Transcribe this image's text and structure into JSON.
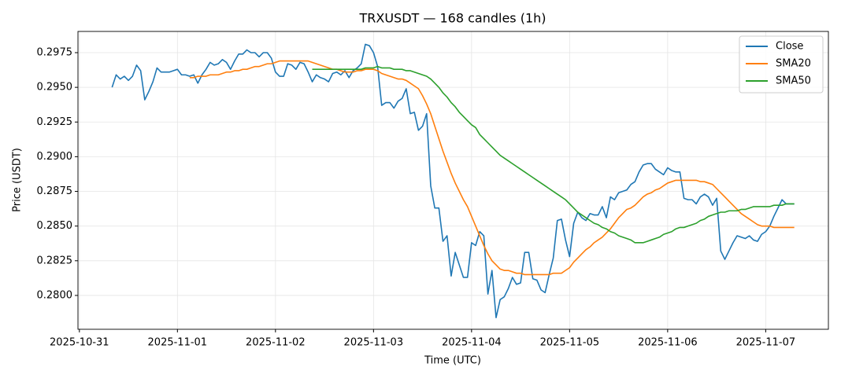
{
  "chart_data": {
    "type": "line",
    "title": "TRXUSDT — 168 candles (1h)",
    "xlabel": "Time (UTC)",
    "ylabel": "Price (USDT)",
    "grid": true,
    "legend": "upper right",
    "xlim": [
      "2025-10-30 23:39",
      "2025-11-07 15:21"
    ],
    "xticks": [
      "2025-10-31",
      "2025-11-01",
      "2025-11-02",
      "2025-11-03",
      "2025-11-04",
      "2025-11-05",
      "2025-11-06",
      "2025-11-07"
    ],
    "ylim": [
      0.27756,
      0.29903
    ],
    "yticks": [
      {
        "value": 0.28,
        "label": "0.2800"
      },
      0.2825,
      {
        "value": 0.285,
        "label": "0.2850"
      },
      0.2875,
      {
        "value": 0.29,
        "label": "0.2900"
      },
      0.2925,
      {
        "value": 0.295,
        "label": "0.2950"
      },
      0.2975
    ],
    "x": [
      "2025-10-31 08:00",
      "2025-10-31 09:00",
      "2025-10-31 10:00",
      "2025-10-31 11:00",
      "2025-10-31 12:00",
      "2025-10-31 13:00",
      "2025-10-31 14:00",
      "2025-10-31 15:00",
      "2025-10-31 16:00",
      "2025-10-31 17:00",
      "2025-10-31 18:00",
      "2025-10-31 19:00",
      "2025-10-31 20:00",
      "2025-10-31 21:00",
      "2025-10-31 22:00",
      "2025-10-31 23:00",
      "2025-11-01 00:00",
      "2025-11-01 01:00",
      "2025-11-01 02:00",
      "2025-11-01 03:00",
      "2025-11-01 04:00",
      "2025-11-01 05:00",
      "2025-11-01 06:00",
      "2025-11-01 07:00",
      "2025-11-01 08:00",
      "2025-11-01 09:00",
      "2025-11-01 10:00",
      "2025-11-01 11:00",
      "2025-11-01 12:00",
      "2025-11-01 13:00",
      "2025-11-01 14:00",
      "2025-11-01 15:00",
      "2025-11-01 16:00",
      "2025-11-01 17:00",
      "2025-11-01 18:00",
      "2025-11-01 19:00",
      "2025-11-01 20:00",
      "2025-11-01 21:00",
      "2025-11-01 22:00",
      "2025-11-01 23:00",
      "2025-11-02 00:00",
      "2025-11-02 01:00",
      "2025-11-02 02:00",
      "2025-11-02 03:00",
      "2025-11-02 04:00",
      "2025-11-02 05:00",
      "2025-11-02 06:00",
      "2025-11-02 07:00",
      "2025-11-02 08:00",
      "2025-11-02 09:00",
      "2025-11-02 10:00",
      "2025-11-02 11:00",
      "2025-11-02 12:00",
      "2025-11-02 13:00",
      "2025-11-02 14:00",
      "2025-11-02 15:00",
      "2025-11-02 16:00",
      "2025-11-02 17:00",
      "2025-11-02 18:00",
      "2025-11-02 19:00",
      "2025-11-02 20:00",
      "2025-11-02 21:00",
      "2025-11-02 22:00",
      "2025-11-02 23:00",
      "2025-11-03 00:00",
      "2025-11-03 01:00",
      "2025-11-03 02:00",
      "2025-11-03 03:00",
      "2025-11-03 04:00",
      "2025-11-03 05:00",
      "2025-11-03 06:00",
      "2025-11-03 07:00",
      "2025-11-03 08:00",
      "2025-11-03 09:00",
      "2025-11-03 10:00",
      "2025-11-03 11:00",
      "2025-11-03 12:00",
      "2025-11-03 13:00",
      "2025-11-03 14:00",
      "2025-11-03 15:00",
      "2025-11-03 16:00",
      "2025-11-03 17:00",
      "2025-11-03 18:00",
      "2025-11-03 19:00",
      "2025-11-03 20:00",
      "2025-11-03 21:00",
      "2025-11-03 22:00",
      "2025-11-03 23:00",
      "2025-11-04 00:00",
      "2025-11-04 01:00",
      "2025-11-04 02:00",
      "2025-11-04 03:00",
      "2025-11-04 04:00",
      "2025-11-04 05:00",
      "2025-11-04 06:00",
      "2025-11-04 07:00",
      "2025-11-04 08:00",
      "2025-11-04 09:00",
      "2025-11-04 10:00",
      "2025-11-04 11:00",
      "2025-11-04 12:00",
      "2025-11-04 13:00",
      "2025-11-04 14:00",
      "2025-11-04 15:00",
      "2025-11-04 16:00",
      "2025-11-04 17:00",
      "2025-11-04 18:00",
      "2025-11-04 19:00",
      "2025-11-04 20:00",
      "2025-11-04 21:00",
      "2025-11-04 22:00",
      "2025-11-04 23:00",
      "2025-11-05 00:00",
      "2025-11-05 01:00",
      "2025-11-05 02:00",
      "2025-11-05 03:00",
      "2025-11-05 04:00",
      "2025-11-05 05:00",
      "2025-11-05 06:00",
      "2025-11-05 07:00",
      "2025-11-05 08:00",
      "2025-11-05 09:00",
      "2025-11-05 10:00",
      "2025-11-05 11:00",
      "2025-11-05 12:00",
      "2025-11-05 13:00",
      "2025-11-05 14:00",
      "2025-11-05 15:00",
      "2025-11-05 16:00",
      "2025-11-05 17:00",
      "2025-11-05 18:00",
      "2025-11-05 19:00",
      "2025-11-05 20:00",
      "2025-11-05 21:00",
      "2025-11-05 22:00",
      "2025-11-05 23:00",
      "2025-11-06 00:00",
      "2025-11-06 01:00",
      "2025-11-06 02:00",
      "2025-11-06 03:00",
      "2025-11-06 04:00",
      "2025-11-06 05:00",
      "2025-11-06 06:00",
      "2025-11-06 07:00",
      "2025-11-06 08:00",
      "2025-11-06 09:00",
      "2025-11-06 10:00",
      "2025-11-06 11:00",
      "2025-11-06 12:00",
      "2025-11-06 13:00",
      "2025-11-06 14:00",
      "2025-11-06 15:00",
      "2025-11-06 16:00",
      "2025-11-06 17:00",
      "2025-11-06 18:00",
      "2025-11-06 19:00",
      "2025-11-06 20:00",
      "2025-11-06 21:00",
      "2025-11-06 22:00",
      "2025-11-06 23:00",
      "2025-11-07 00:00",
      "2025-11-07 01:00",
      "2025-11-07 02:00",
      "2025-11-07 03:00",
      "2025-11-07 04:00",
      "2025-11-07 05:00",
      "2025-11-07 06:00",
      "2025-11-07 07:00"
    ],
    "series": [
      {
        "name": "Close",
        "color": "#1f77b4",
        "values": [
          0.295,
          0.2959,
          0.2956,
          0.2958,
          0.2955,
          0.2958,
          0.2966,
          0.2962,
          0.2941,
          0.2947,
          0.2954,
          0.2964,
          0.2961,
          0.2961,
          0.2961,
          0.2962,
          0.2963,
          0.2959,
          0.2959,
          0.2958,
          0.2959,
          0.2953,
          0.2959,
          0.2963,
          0.2968,
          0.2966,
          0.2967,
          0.297,
          0.2968,
          0.2963,
          0.2969,
          0.2974,
          0.2974,
          0.2977,
          0.2975,
          0.2975,
          0.2972,
          0.2975,
          0.2975,
          0.2971,
          0.2961,
          0.2958,
          0.2958,
          0.2967,
          0.2966,
          0.2963,
          0.2968,
          0.2967,
          0.2961,
          0.2954,
          0.2959,
          0.2957,
          0.2956,
          0.2954,
          0.296,
          0.2961,
          0.2959,
          0.2962,
          0.2957,
          0.2962,
          0.2964,
          0.2967,
          0.2981,
          0.298,
          0.2975,
          0.2965,
          0.2937,
          0.2939,
          0.2939,
          0.2935,
          0.294,
          0.2942,
          0.2949,
          0.2931,
          0.2932,
          0.2919,
          0.2922,
          0.2931,
          0.2879,
          0.2863,
          0.2863,
          0.2839,
          0.2843,
          0.2814,
          0.2831,
          0.2822,
          0.2813,
          0.2813,
          0.2838,
          0.2836,
          0.2846,
          0.2843,
          0.2801,
          0.2818,
          0.2784,
          0.2797,
          0.2799,
          0.2805,
          0.2813,
          0.2808,
          0.2809,
          0.2831,
          0.2831,
          0.2812,
          0.2811,
          0.2804,
          0.2802,
          0.2815,
          0.2827,
          0.2854,
          0.2855,
          0.284,
          0.2828,
          0.2852,
          0.286,
          0.2856,
          0.2854,
          0.2859,
          0.2858,
          0.2858,
          0.2864,
          0.2856,
          0.2871,
          0.2869,
          0.2874,
          0.2875,
          0.2876,
          0.288,
          0.2882,
          0.2889,
          0.2894,
          0.2895,
          0.2895,
          0.2891,
          0.2889,
          0.2887,
          0.2892,
          0.289,
          0.2889,
          0.2889,
          0.287,
          0.2869,
          0.2869,
          0.2866,
          0.2871,
          0.2873,
          0.2871,
          0.2865,
          0.287,
          0.2832,
          0.2826,
          0.2832,
          0.2838,
          0.2843,
          0.2842,
          0.2841,
          0.2843,
          0.284,
          0.2839,
          0.2844,
          0.2846,
          0.285,
          0.2857,
          0.2863,
          0.2869,
          0.2866,
          0.2866,
          0.2866
        ]
      },
      {
        "name": "SMA20",
        "color": "#ff7f0e",
        "values": [
          null,
          null,
          null,
          null,
          null,
          null,
          null,
          null,
          null,
          null,
          null,
          null,
          null,
          null,
          null,
          null,
          null,
          null,
          null,
          0.2957,
          0.2957,
          0.2958,
          0.2958,
          0.2958,
          0.2959,
          0.2959,
          0.2959,
          0.296,
          0.2961,
          0.2961,
          0.2962,
          0.2962,
          0.2963,
          0.2963,
          0.2964,
          0.2965,
          0.2965,
          0.2966,
          0.2967,
          0.2967,
          0.2968,
          0.2969,
          0.2969,
          0.2969,
          0.2969,
          0.2969,
          0.2969,
          0.2969,
          0.2969,
          0.2968,
          0.2967,
          0.2966,
          0.2965,
          0.2964,
          0.2963,
          0.2963,
          0.2962,
          0.2961,
          0.2961,
          0.2961,
          0.2962,
          0.2962,
          0.2963,
          0.2963,
          0.2963,
          0.2962,
          0.296,
          0.2959,
          0.2958,
          0.2957,
          0.2956,
          0.2956,
          0.2955,
          0.2953,
          0.2951,
          0.2949,
          0.2944,
          0.2938,
          0.2931,
          0.2922,
          0.2913,
          0.2904,
          0.2896,
          0.2888,
          0.2881,
          0.2875,
          0.2869,
          0.2864,
          0.2857,
          0.285,
          0.2843,
          0.2836,
          0.283,
          0.2825,
          0.2822,
          0.2819,
          0.2818,
          0.2818,
          0.2817,
          0.2816,
          0.2816,
          0.2815,
          0.2815,
          0.2815,
          0.2815,
          0.2815,
          0.2815,
          0.2815,
          0.2816,
          0.2816,
          0.2816,
          0.2818,
          0.282,
          0.2824,
          0.2827,
          0.283,
          0.2833,
          0.2835,
          0.2838,
          0.284,
          0.2842,
          0.2845,
          0.2848,
          0.2852,
          0.2856,
          0.2859,
          0.2862,
          0.2863,
          0.2865,
          0.2868,
          0.2871,
          0.2873,
          0.2874,
          0.2876,
          0.2877,
          0.2879,
          0.2881,
          0.2882,
          0.2883,
          0.2883,
          0.2883,
          0.2883,
          0.2883,
          0.2883,
          0.2882,
          0.2882,
          0.2881,
          0.288,
          0.2877,
          0.2874,
          0.2871,
          0.2868,
          0.2865,
          0.2862,
          0.2859,
          0.2857,
          0.2855,
          0.2853,
          0.2851,
          0.285,
          0.285,
          0.285,
          0.2849,
          0.2849,
          0.2849,
          0.2849,
          0.2849,
          0.2849
        ]
      },
      {
        "name": "SMA50",
        "color": "#2ca02c",
        "values": [
          null,
          null,
          null,
          null,
          null,
          null,
          null,
          null,
          null,
          null,
          null,
          null,
          null,
          null,
          null,
          null,
          null,
          null,
          null,
          null,
          null,
          null,
          null,
          null,
          null,
          null,
          null,
          null,
          null,
          null,
          null,
          null,
          null,
          null,
          null,
          null,
          null,
          null,
          null,
          null,
          null,
          null,
          null,
          null,
          null,
          null,
          null,
          null,
          null,
          0.2963,
          0.2963,
          0.2963,
          0.2963,
          0.2963,
          0.2963,
          0.2963,
          0.2963,
          0.2963,
          0.2963,
          0.2963,
          0.2963,
          0.2963,
          0.2964,
          0.2964,
          0.2964,
          0.2965,
          0.2964,
          0.2964,
          0.2964,
          0.2963,
          0.2963,
          0.2963,
          0.2962,
          0.2962,
          0.2961,
          0.296,
          0.2959,
          0.2958,
          0.2956,
          0.2953,
          0.295,
          0.2946,
          0.2943,
          0.2939,
          0.2936,
          0.2932,
          0.2929,
          0.2926,
          0.2923,
          0.2921,
          0.2916,
          0.2913,
          0.291,
          0.2907,
          0.2904,
          0.2901,
          0.2899,
          0.2897,
          0.2895,
          0.2893,
          0.2891,
          0.2889,
          0.2887,
          0.2885,
          0.2883,
          0.2881,
          0.2879,
          0.2877,
          0.2875,
          0.2873,
          0.2871,
          0.2869,
          0.2866,
          0.2863,
          0.286,
          0.2858,
          0.2856,
          0.2854,
          0.2852,
          0.2851,
          0.2849,
          0.2848,
          0.2846,
          0.2845,
          0.2843,
          0.2842,
          0.2841,
          0.284,
          0.2838,
          0.2838,
          0.2838,
          0.2839,
          0.284,
          0.2841,
          0.2842,
          0.2844,
          0.2845,
          0.2846,
          0.2848,
          0.2849,
          0.2849,
          0.285,
          0.2851,
          0.2852,
          0.2854,
          0.2855,
          0.2857,
          0.2858,
          0.2859,
          0.286,
          0.286,
          0.2861,
          0.2861,
          0.2861,
          0.2862,
          0.2862,
          0.2863,
          0.2864,
          0.2864,
          0.2864,
          0.2864,
          0.2864,
          0.2865,
          0.2865,
          0.2865,
          0.2866,
          0.2866,
          0.2866
        ]
      }
    ]
  }
}
